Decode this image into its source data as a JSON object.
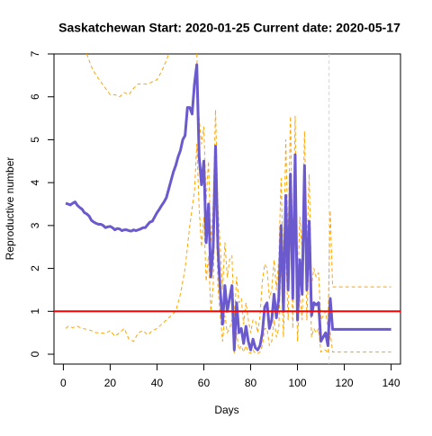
{
  "chart_data": {
    "type": "line",
    "title": "Saskatchewan Start:  2020-01-25   Current date:  2020-05-17",
    "x_label": "Days",
    "y_label": "Reproductive number",
    "xlim": [
      -4,
      144
    ],
    "ylim": [
      -0.23,
      7
    ],
    "xticks": [
      0,
      20,
      40,
      60,
      80,
      100,
      120,
      140
    ],
    "yticks": [
      0,
      1,
      2,
      3,
      4,
      5,
      6,
      7
    ],
    "reference_line": {
      "y": 1,
      "color": "#ff0000"
    },
    "vertical_line": {
      "x": 113.5,
      "color": "#d3d3d3"
    },
    "series": [
      {
        "color": "#ffa500",
        "dashed": true,
        "width": 1,
        "x": [
          10,
          12,
          14,
          16,
          18,
          20,
          22,
          24,
          26,
          28,
          30,
          32,
          34,
          36,
          38,
          40,
          42,
          44,
          45,
          50,
          57,
          58,
          59,
          60,
          61,
          62,
          63,
          64,
          65,
          66,
          67,
          68,
          69,
          70,
          71,
          72,
          73,
          74,
          75,
          76,
          77,
          78,
          79,
          80,
          81,
          82,
          83,
          84,
          85,
          86,
          87,
          88,
          89,
          90,
          91,
          92,
          93,
          94,
          95,
          96,
          97,
          98,
          99,
          100,
          101,
          102,
          103,
          104,
          105,
          106,
          107,
          108,
          109,
          110,
          111,
          112,
          113,
          114,
          115,
          140
        ],
        "values": [
          7.0,
          6.7,
          6.5,
          6.35,
          6.2,
          6.05,
          6.05,
          6.0,
          6.1,
          6.05,
          6.2,
          6.3,
          6.3,
          6.3,
          6.35,
          6.4,
          6.6,
          6.85,
          7.0,
          null,
          7.0,
          5.5,
          4.9,
          5.3,
          3.6,
          4.5,
          2.6,
          3.5,
          5.7,
          3.5,
          2.5,
          1.5,
          2.6,
          1.8,
          2.2,
          2.3,
          0.8,
          1.8,
          1.2,
          1.3,
          0.7,
          1.2,
          0.8,
          0.5,
          0.8,
          0.8,
          0.5,
          0.9,
          1.7,
          2.1,
          2.0,
          1.3,
          1.5,
          2.2,
          1.5,
          2.2,
          4.1,
          1.9,
          5.0,
          2.6,
          5.55,
          2.2,
          5.55,
          1.4,
          3.2,
          2.4,
          5.2,
          2.5,
          4.2,
          1.6,
          2.0,
          1.8,
          1.9,
          0.8,
          0.9,
          1.0,
          0.6,
          3.35,
          1.57,
          1.57
        ]
      },
      {
        "color": "#ffa500",
        "dashed": true,
        "width": 1,
        "x": [
          1,
          2,
          4,
          6,
          8,
          10,
          12,
          14,
          16,
          18,
          20,
          22,
          24,
          26,
          28,
          30,
          32,
          34,
          36,
          38,
          40,
          42,
          44,
          46,
          48,
          50,
          52,
          54,
          56,
          57,
          58,
          59,
          60,
          61,
          62,
          63,
          64,
          65,
          66,
          67,
          68,
          69,
          70,
          71,
          72,
          73,
          74,
          75,
          76,
          77,
          78,
          79,
          80,
          81,
          82,
          83,
          84,
          85,
          86,
          87,
          88,
          89,
          90,
          91,
          92,
          93,
          94,
          95,
          96,
          97,
          98,
          99,
          100,
          101,
          102,
          103,
          104,
          105,
          106,
          107,
          108,
          109,
          110,
          111,
          112,
          113,
          114,
          115,
          140
        ],
        "values": [
          0.6,
          0.65,
          0.62,
          0.65,
          0.6,
          0.58,
          0.55,
          0.5,
          0.5,
          0.48,
          0.55,
          0.42,
          0.5,
          0.6,
          0.35,
          0.3,
          0.5,
          0.55,
          0.45,
          0.55,
          0.6,
          0.7,
          0.8,
          0.9,
          1.0,
          1.4,
          2.0,
          3.0,
          3.8,
          4.9,
          3.4,
          2.5,
          3.2,
          1.7,
          2.3,
          1.0,
          1.6,
          3.9,
          1.6,
          0.9,
          0.3,
          0.9,
          0.5,
          0.6,
          0.8,
          0.0,
          0.5,
          0.1,
          0.2,
          0.05,
          0.2,
          0.05,
          0.02,
          0.1,
          0.02,
          0.02,
          0.05,
          0.2,
          0.6,
          0.6,
          0.2,
          0.3,
          0.8,
          0.4,
          0.6,
          2.2,
          0.4,
          2.4,
          0.8,
          3.0,
          0.6,
          3.8,
          0.3,
          1.4,
          0.8,
          3.5,
          0.8,
          2.4,
          0.4,
          0.6,
          0.5,
          0.6,
          0.05,
          0.1,
          0.1,
          0.02,
          0.5,
          0.05,
          0.05
        ]
      },
      {
        "color": "#6a5acd",
        "dashed": false,
        "width": 3,
        "x": [
          1,
          2,
          3,
          4,
          5,
          6,
          7,
          8,
          9,
          10,
          11,
          12,
          13,
          14,
          15,
          16,
          17,
          18,
          19,
          20,
          21,
          22,
          23,
          24,
          25,
          26,
          27,
          28,
          29,
          30,
          31,
          32,
          33,
          34,
          35,
          36,
          37,
          38,
          39,
          40,
          41,
          42,
          43,
          44,
          45,
          46,
          47,
          48,
          49,
          50,
          51,
          52,
          53,
          54,
          55,
          56,
          57,
          58,
          59,
          60,
          61,
          62,
          63,
          64,
          65,
          66,
          67,
          68,
          69,
          70,
          71,
          72,
          73,
          74,
          75,
          76,
          77,
          78,
          79,
          80,
          81,
          82,
          83,
          84,
          85,
          86,
          87,
          88,
          89,
          90,
          91,
          92,
          93,
          94,
          95,
          96,
          97,
          98,
          99,
          100,
          101,
          102,
          103,
          104,
          105,
          106,
          107,
          108,
          109,
          110,
          111,
          112,
          113,
          114,
          115,
          140
        ],
        "values": [
          3.52,
          3.5,
          3.48,
          3.52,
          3.55,
          3.47,
          3.42,
          3.38,
          3.3,
          3.27,
          3.22,
          3.12,
          3.08,
          3.05,
          3.03,
          3.03,
          3.0,
          2.95,
          2.97,
          2.98,
          2.95,
          2.9,
          2.93,
          2.92,
          2.88,
          2.9,
          2.9,
          2.88,
          2.87,
          2.9,
          2.88,
          2.9,
          2.92,
          2.95,
          2.95,
          3.02,
          3.08,
          3.1,
          3.2,
          3.3,
          3.38,
          3.47,
          3.55,
          3.65,
          3.85,
          4.05,
          4.25,
          4.4,
          4.6,
          4.75,
          5.0,
          5.1,
          5.75,
          5.75,
          5.6,
          6.3,
          6.75,
          4.6,
          3.95,
          4.5,
          2.6,
          3.5,
          1.8,
          2.5,
          4.85,
          2.5,
          1.5,
          0.7,
          1.6,
          1.0,
          1.3,
          1.6,
          0.1,
          1.2,
          0.5,
          0.6,
          0.25,
          0.65,
          0.3,
          0.1,
          0.35,
          0.15,
          0.1,
          0.2,
          0.5,
          1.1,
          1.2,
          0.6,
          0.8,
          1.4,
          0.85,
          1.3,
          3.0,
          1.0,
          3.7,
          1.5,
          4.2,
          1.3,
          4.65,
          0.8,
          2.2,
          1.4,
          4.4,
          1.5,
          3.1,
          0.9,
          1.2,
          1.15,
          1.2,
          0.3,
          0.4,
          0.5,
          0.2,
          1.3,
          0.58,
          0.58
        ]
      }
    ]
  }
}
